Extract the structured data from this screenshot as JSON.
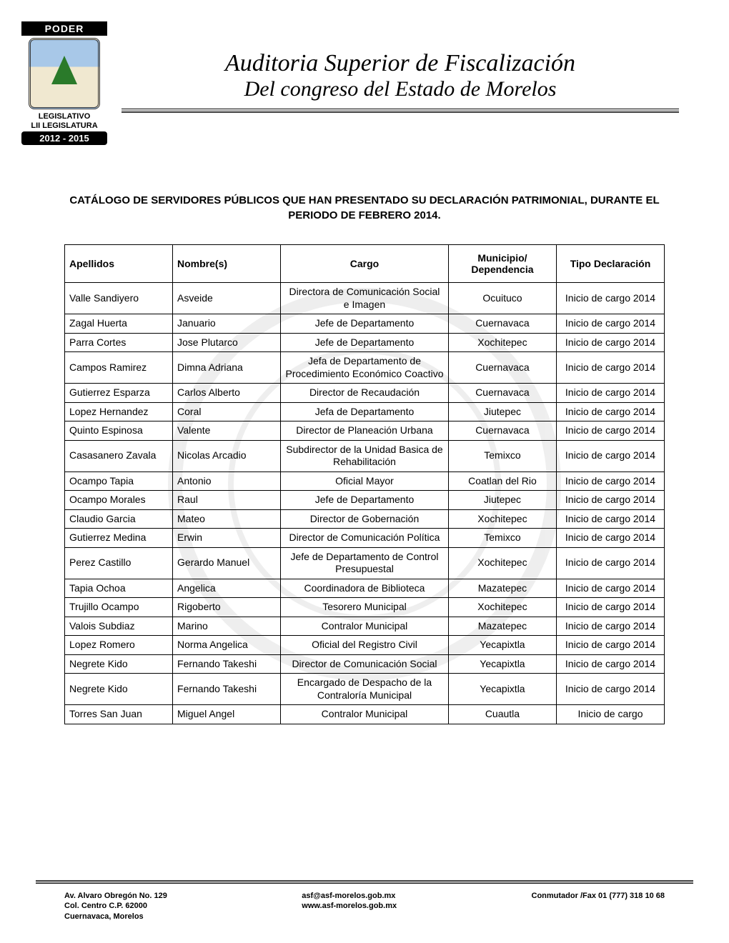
{
  "logo": {
    "top": "PODER",
    "legislativo": "LEGISLATIVO",
    "sub": "LII LEGISLATURA",
    "years": "2012 - 2015"
  },
  "header": {
    "line1": "Auditoria Superior de Fiscalización",
    "line2": "Del congreso del Estado de Morelos"
  },
  "catalog": {
    "title": "CATÁLOGO DE SERVIDORES PÚBLICOS QUE HAN PRESENTADO SU DECLARACIÓN PATRIMONIAL, DURANTE  EL PERIODO DE FEBRERO 2014."
  },
  "table": {
    "headers": {
      "apellidos": "Apellidos",
      "nombres": "Nombre(s)",
      "cargo": "Cargo",
      "municipio": "Municipio/ Dependencia",
      "tipo": "Tipo Declaración"
    },
    "rows": [
      {
        "ape": "Valle Sandiyero",
        "nom": "Asveide",
        "car": "Directora de Comunicación Social e Imagen",
        "mun": "Ocuituco",
        "tip": "Inicio de cargo 2014"
      },
      {
        "ape": "Zagal Huerta",
        "nom": "Januario",
        "car": "Jefe de Departamento",
        "mun": "Cuernavaca",
        "tip": "Inicio de cargo 2014"
      },
      {
        "ape": "Parra Cortes",
        "nom": "Jose Plutarco",
        "car": "Jefe de Departamento",
        "mun": "Xochitepec",
        "tip": "Inicio de cargo 2014"
      },
      {
        "ape": "Campos Ramirez",
        "nom": "Dimna Adriana",
        "car": "Jefa de Departamento de Procedimiento Económico Coactivo",
        "mun": "Cuernavaca",
        "tip": "Inicio de cargo 2014"
      },
      {
        "ape": "Gutierrez Esparza",
        "nom": "Carlos Alberto",
        "car": "Director de Recaudación",
        "mun": "Cuernavaca",
        "tip": "Inicio de cargo 2014"
      },
      {
        "ape": "Lopez Hernandez",
        "nom": "Coral",
        "car": "Jefa de Departamento",
        "mun": "Jiutepec",
        "tip": "Inicio de cargo 2014"
      },
      {
        "ape": "Quinto Espinosa",
        "nom": "Valente",
        "car": "Director de Planeación Urbana",
        "mun": "Cuernavaca",
        "tip": "Inicio de cargo 2014"
      },
      {
        "ape": "Casasanero Zavala",
        "nom": "Nicolas Arcadio",
        "car": "Subdirector de la Unidad Basica de Rehabilitación",
        "mun": "Temixco",
        "tip": "Inicio de cargo 2014"
      },
      {
        "ape": "Ocampo Tapia",
        "nom": "Antonio",
        "car": "Oficial Mayor",
        "mun": "Coatlan del Rio",
        "tip": "Inicio de cargo 2014"
      },
      {
        "ape": "Ocampo Morales",
        "nom": "Raul",
        "car": "Jefe de Departamento",
        "mun": "Jiutepec",
        "tip": "Inicio de cargo 2014"
      },
      {
        "ape": "Claudio Garcia",
        "nom": "Mateo",
        "car": "Director de Gobernación",
        "mun": "Xochitepec",
        "tip": "Inicio de cargo 2014"
      },
      {
        "ape": "Gutierrez Medina",
        "nom": "Erwin",
        "car": "Director de Comunicación Política",
        "mun": "Temixco",
        "tip": "Inicio de cargo 2014"
      },
      {
        "ape": "Perez Castillo",
        "nom": "Gerardo Manuel",
        "car": "Jefe de Departamento de Control Presupuestal",
        "mun": "Xochitepec",
        "tip": "Inicio de cargo 2014"
      },
      {
        "ape": "Tapia Ochoa",
        "nom": "Angelica",
        "car": "Coordinadora de Biblioteca",
        "mun": "Mazatepec",
        "tip": "Inicio de cargo 2014"
      },
      {
        "ape": "Trujillo Ocampo",
        "nom": "Rigoberto",
        "car": "Tesorero Municipal",
        "mun": "Xochitepec",
        "tip": "Inicio de cargo 2014"
      },
      {
        "ape": "Valois Subdiaz",
        "nom": "Marino",
        "car": "Contralor Municipal",
        "mun": "Mazatepec",
        "tip": "Inicio de cargo 2014"
      },
      {
        "ape": "Lopez Romero",
        "nom": "Norma Angelica",
        "car": "Oficial del Registro Civil",
        "mun": "Yecapixtla",
        "tip": "Inicio de cargo 2014"
      },
      {
        "ape": "Negrete Kido",
        "nom": "Fernando Takeshi",
        "car": "Director de Comunicación Social",
        "mun": "Yecapixtla",
        "tip": "Inicio de cargo 2014"
      },
      {
        "ape": "Negrete Kido",
        "nom": "Fernando Takeshi",
        "car": "Encargado de Despacho de la Contraloría Municipal",
        "mun": "Yecapixtla",
        "tip": "Inicio de cargo 2014"
      },
      {
        "ape": "Torres San Juan",
        "nom": "Miguel Angel",
        "car": "Contralor Municipal",
        "mun": "Cuautla",
        "tip": "Inicio de cargo"
      }
    ]
  },
  "footer": {
    "addr1": "Av. Alvaro Obregón No. 129",
    "addr2": "Col. Centro C.P. 62000",
    "addr3": "Cuernavaca, Morelos",
    "email": "asf@asf-morelos.gob.mx",
    "web": "www.asf-morelos.gob.mx",
    "fax": "Conmutador /Fax 01 (777) 318 10 68"
  }
}
